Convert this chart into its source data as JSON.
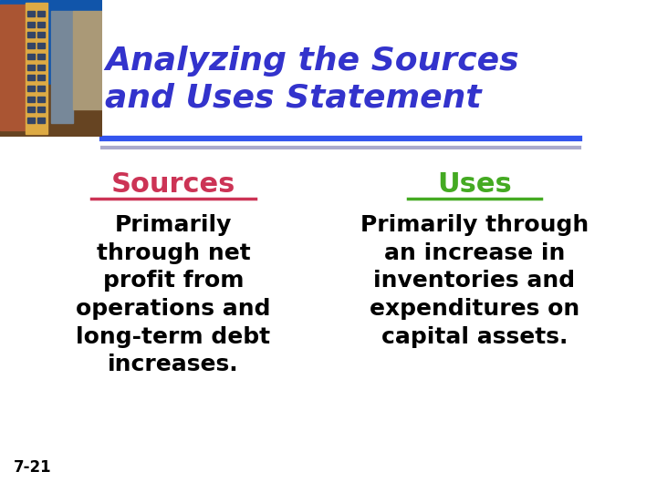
{
  "title_line1": "Analyzing the Sources",
  "title_line2": "and Uses Statement",
  "title_color": "#3333CC",
  "title_fontsize": 26,
  "title_style": "italic",
  "title_weight": "bold",
  "sources_label": "Sources",
  "sources_color": "#CC3355",
  "uses_label": "Uses",
  "uses_color": "#44AA22",
  "header_fontsize": 22,
  "sources_text": "Primarily\nthrough net\nprofit from\noperations and\nlong-term debt\nincreases.",
  "uses_text": "Primarily through\nan increase in\ninventories and\nexpenditures on\ncapital assets.",
  "body_fontsize": 18,
  "body_color": "#000000",
  "slide_number": "7-21",
  "slide_num_fontsize": 12,
  "bg_color": "#FFFFFF",
  "line_color_blue": "#3355EE",
  "line_color_gray": "#AAAACC"
}
